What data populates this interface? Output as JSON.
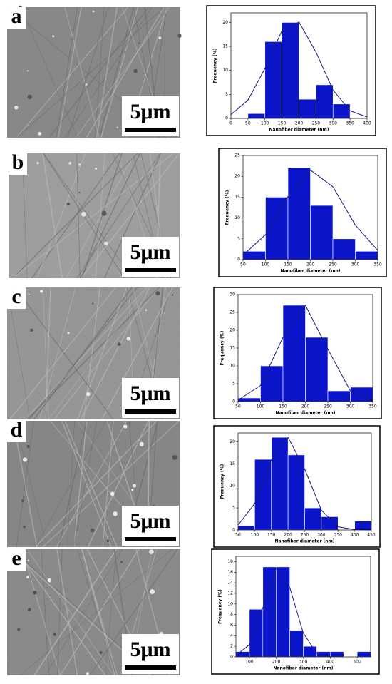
{
  "panels": [
    {
      "label": "a",
      "scale": "5μm"
    },
    {
      "label": "b",
      "scale": "5μm"
    },
    {
      "label": "c",
      "scale": "5μm"
    },
    {
      "label": "d",
      "scale": "5μm"
    },
    {
      "label": "e",
      "scale": "5μm"
    }
  ],
  "chart_data": [
    {
      "type": "histogram",
      "x_label": "Nanofiber diameter (nm)",
      "y_label": "Frequency (%)",
      "color": "#0a14c8",
      "bins": [
        50,
        100,
        150,
        200,
        250,
        300,
        350
      ],
      "values": [
        1,
        16,
        20,
        4,
        7,
        3
      ],
      "xlim": [
        0,
        400
      ],
      "xticks": [
        0,
        50,
        100,
        150,
        200,
        250,
        300,
        350,
        400
      ],
      "ylim": [
        0,
        22
      ],
      "yticks": [
        0,
        5,
        10,
        15,
        20
      ],
      "fit_color": "#1a1a80",
      "fit_x": [
        0,
        50,
        100,
        150,
        200,
        250,
        300,
        350,
        400
      ],
      "fit_y": [
        0.8,
        3.8,
        10.4,
        18.3,
        20.1,
        13.8,
        5.9,
        1.6,
        0.3
      ]
    },
    {
      "type": "histogram",
      "x_label": "Nanofiber diameter (nm)",
      "y_label": "Frequency (%)",
      "color": "#0a14c8",
      "bins": [
        50,
        100,
        150,
        200,
        250,
        300,
        350
      ],
      "values": [
        2,
        15,
        22,
        13,
        5,
        2
      ],
      "xlim": [
        50,
        350
      ],
      "xticks": [
        50,
        100,
        150,
        200,
        250,
        300,
        350
      ],
      "ylim": [
        0,
        25
      ],
      "yticks": [
        0,
        5,
        10,
        15,
        20,
        25
      ],
      "fit_color": "#1a1a80",
      "fit_x": [
        50,
        100,
        150,
        200,
        250,
        300,
        350
      ],
      "fit_y": [
        1.1,
        6.0,
        15.1,
        21.5,
        17.5,
        8.3,
        2.2
      ]
    },
    {
      "type": "histogram",
      "x_label": "Nanofiber diameter (nm)",
      "y_label": "Frequency (%)",
      "color": "#0a14c8",
      "bins": [
        50,
        100,
        150,
        200,
        250,
        300,
        350
      ],
      "values": [
        1,
        10,
        27,
        18,
        3,
        4
      ],
      "xlim": [
        50,
        350
      ],
      "xticks": [
        50,
        100,
        150,
        200,
        250,
        300,
        350
      ],
      "ylim": [
        0,
        30
      ],
      "yticks": [
        0,
        5,
        10,
        15,
        20,
        25,
        30
      ],
      "fit_color": "#1a1a80",
      "fit_x": [
        50,
        100,
        150,
        200,
        250,
        300,
        350
      ],
      "fit_y": [
        0.4,
        4.5,
        18,
        27,
        14.7,
        3.0,
        0.2
      ]
    },
    {
      "type": "histogram",
      "x_label": "Nanofiber diameter (nm)",
      "y_label": "Frequency (%)",
      "color": "#0a14c8",
      "bins": [
        50,
        100,
        150,
        200,
        250,
        300,
        350,
        400,
        450
      ],
      "values": [
        1,
        16,
        21,
        17,
        5,
        3,
        0,
        2
      ],
      "xlim": [
        50,
        450
      ],
      "xticks": [
        50,
        100,
        150,
        200,
        250,
        300,
        350,
        400,
        450
      ],
      "ylim": [
        0,
        22
      ],
      "yticks": [
        0,
        5,
        10,
        15,
        20
      ],
      "fit_color": "#1a1a80",
      "fit_x": [
        50,
        100,
        150,
        200,
        250,
        300,
        350,
        400,
        450
      ],
      "fit_y": [
        1.1,
        6.0,
        15.9,
        21,
        13.8,
        4.5,
        0.7,
        0.1,
        0
      ]
    },
    {
      "type": "histogram",
      "x_label": "Nanofiber diameter (nm)",
      "y_label": "Frequency (%)",
      "color": "#0a14c8",
      "bins": [
        50,
        100,
        150,
        200,
        250,
        300,
        350,
        400,
        450,
        500,
        550
      ],
      "values": [
        1,
        9,
        17,
        17,
        5,
        2,
        1,
        1,
        0,
        1
      ],
      "xlim": [
        50,
        550
      ],
      "xticks": [
        100,
        200,
        300,
        400,
        500
      ],
      "ylim": [
        0,
        19
      ],
      "yticks": [
        0,
        2,
        4,
        6,
        8,
        10,
        12,
        14,
        16,
        18
      ],
      "fit_color": "#1a1a80",
      "fit_x": [
        50,
        100,
        150,
        200,
        250,
        300,
        350,
        400
      ],
      "fit_y": [
        0.25,
        2.3,
        9.3,
        16.8,
        13.1,
        4.5,
        0.7,
        0.05
      ]
    }
  ]
}
